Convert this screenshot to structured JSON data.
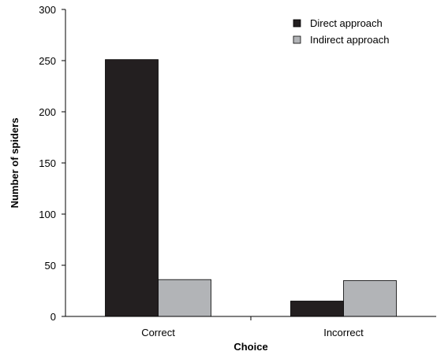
{
  "chart_data": {
    "type": "bar",
    "title": "",
    "xlabel": "Choice",
    "ylabel": "Number of spiders",
    "categories": [
      "Correct",
      "Incorrect"
    ],
    "series": [
      {
        "name": "Direct approach",
        "values": [
          251,
          15
        ],
        "color": "#231f20"
      },
      {
        "name": "Indirect approach",
        "values": [
          36,
          35
        ],
        "color": "#b2b4b7"
      }
    ],
    "ylim": [
      0,
      300
    ],
    "yticks": [
      0,
      50,
      100,
      150,
      200,
      250,
      300
    ],
    "grid": false,
    "legend_position": "top-right"
  }
}
